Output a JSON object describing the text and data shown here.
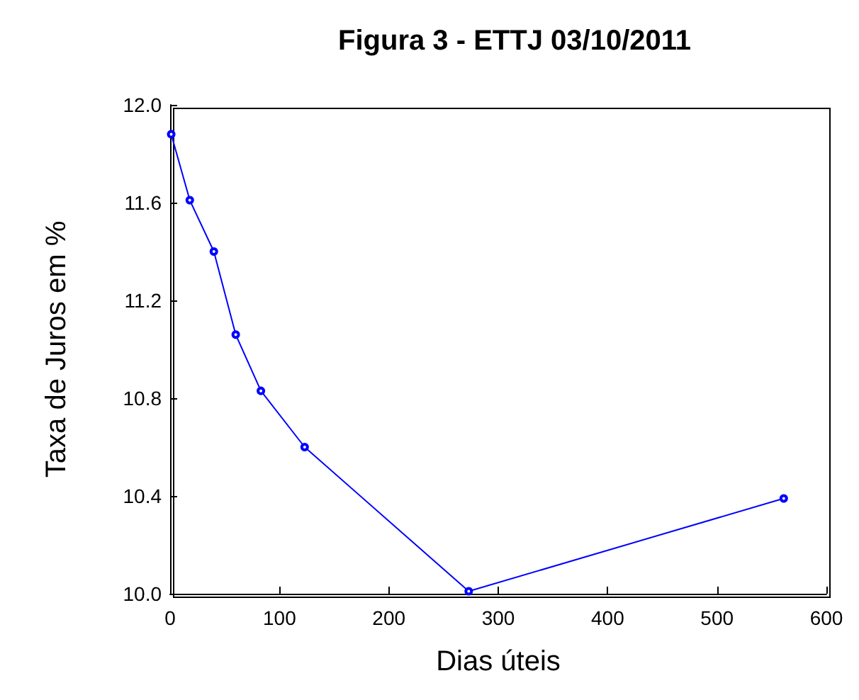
{
  "chart_data": {
    "type": "line",
    "title": "Figura 3 - ETTJ 03/10/2011",
    "xlabel": "Dias úteis",
    "ylabel": "Taxa de Juros em %",
    "x": [
      1,
      18,
      40,
      60,
      83,
      123,
      273,
      561
    ],
    "series": [
      {
        "color": "#0000ff",
        "values": [
          11.88,
          11.61,
          11.4,
          11.06,
          10.83,
          10.6,
          10.01,
          10.39
        ]
      }
    ],
    "xlim": [
      0,
      600
    ],
    "xticks": [
      0,
      100,
      200,
      300,
      400,
      500,
      600
    ],
    "ylim": [
      10.0,
      12.0
    ],
    "yticks": [
      {
        "value": 10,
        "label": "10.0"
      },
      {
        "value": 10.4,
        "label": "10.4"
      },
      {
        "value": 10.8,
        "label": "10.8"
      },
      {
        "value": 11.2,
        "label": "11.2"
      },
      {
        "value": 11.6,
        "label": "11.6"
      },
      {
        "value": 12,
        "label": "12.0"
      }
    ],
    "grid": false,
    "marker": "circle",
    "line_style": "solid"
  }
}
